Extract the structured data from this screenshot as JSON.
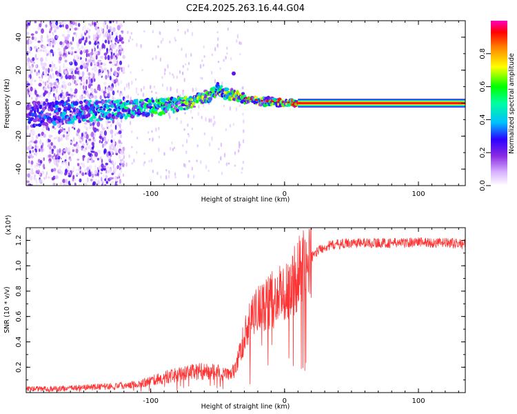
{
  "chart_data": [
    {
      "type": "heatmap",
      "title": "C2E4.2025.263.16.44.G04",
      "xlabel": "Height of straight line (km)",
      "ylabel": "Frequency (Hz)",
      "xlim": [
        -193,
        135
      ],
      "ylim": [
        -50,
        50
      ],
      "xticks": [
        -100,
        0,
        100
      ],
      "yticks": [
        -40,
        -20,
        0,
        20,
        40
      ],
      "colorbar": {
        "label": "Normalized spectral amplitude",
        "range": [
          0,
          1
        ],
        "ticks": [
          "0.0",
          "0.2",
          "0.4",
          "0.6",
          "0.8"
        ],
        "colors": [
          "#ffffff",
          "#d9b3ff",
          "#8a2be2",
          "#2b00ff",
          "#00bfff",
          "#00ffa0",
          "#00ff00",
          "#ffff00",
          "#ff8000",
          "#ff0000",
          "#ff00c0"
        ]
      },
      "features": {
        "noise_region_x": [
          -193,
          -130
        ],
        "ridge": [
          {
            "x": -190,
            "f": -7
          },
          {
            "x": -170,
            "f": -6
          },
          {
            "x": -150,
            "f": -5
          },
          {
            "x": -130,
            "f": -4
          },
          {
            "x": -110,
            "f": -3
          },
          {
            "x": -90,
            "f": -2
          },
          {
            "x": -75,
            "f": 0
          },
          {
            "x": -65,
            "f": 2
          },
          {
            "x": -55,
            "f": 5
          },
          {
            "x": -50,
            "f": 9
          },
          {
            "x": -45,
            "f": 6
          },
          {
            "x": -35,
            "f": 4
          },
          {
            "x": -25,
            "f": 2
          },
          {
            "x": -15,
            "f": 1
          },
          {
            "x": -5,
            "f": 0.5
          },
          {
            "x": 10,
            "f": 0
          }
        ],
        "carrier_band": {
          "x_start": 10,
          "x_end": 135,
          "f": 0,
          "amplitude": 0.95
        }
      }
    },
    {
      "type": "line",
      "xlabel": "Height of straight line (km)",
      "ylabel": "SNR (10 * v/v)",
      "y_multiplier_label": "(x10⁴)",
      "xlim": [
        -193,
        135
      ],
      "ylim": [
        0,
        1.3
      ],
      "xticks": [
        -100,
        0,
        100
      ],
      "yticks": [
        "0.2",
        "0.4",
        "0.6",
        "0.8",
        "1.0",
        "1.2"
      ],
      "color": "#ff3333",
      "series": [
        {
          "name": "SNR",
          "x": [
            -193,
            -170,
            -150,
            -130,
            -110,
            -100,
            -90,
            -80,
            -70,
            -60,
            -50,
            -40,
            -35,
            -30,
            -25,
            -20,
            -15,
            -10,
            -5,
            0,
            5,
            10,
            15,
            20,
            25,
            30,
            35,
            40,
            50,
            60,
            70,
            80,
            90,
            100,
            110,
            120,
            135
          ],
          "values": [
            0.03,
            0.03,
            0.04,
            0.05,
            0.07,
            0.09,
            0.12,
            0.14,
            0.16,
            0.17,
            0.16,
            0.14,
            0.25,
            0.45,
            0.58,
            0.65,
            0.7,
            0.72,
            0.76,
            0.78,
            0.85,
            0.93,
            1.0,
            1.07,
            1.12,
            1.15,
            1.16,
            1.17,
            1.18,
            1.18,
            1.18,
            1.18,
            1.18,
            1.19,
            1.18,
            1.18,
            1.17
          ]
        }
      ]
    }
  ]
}
